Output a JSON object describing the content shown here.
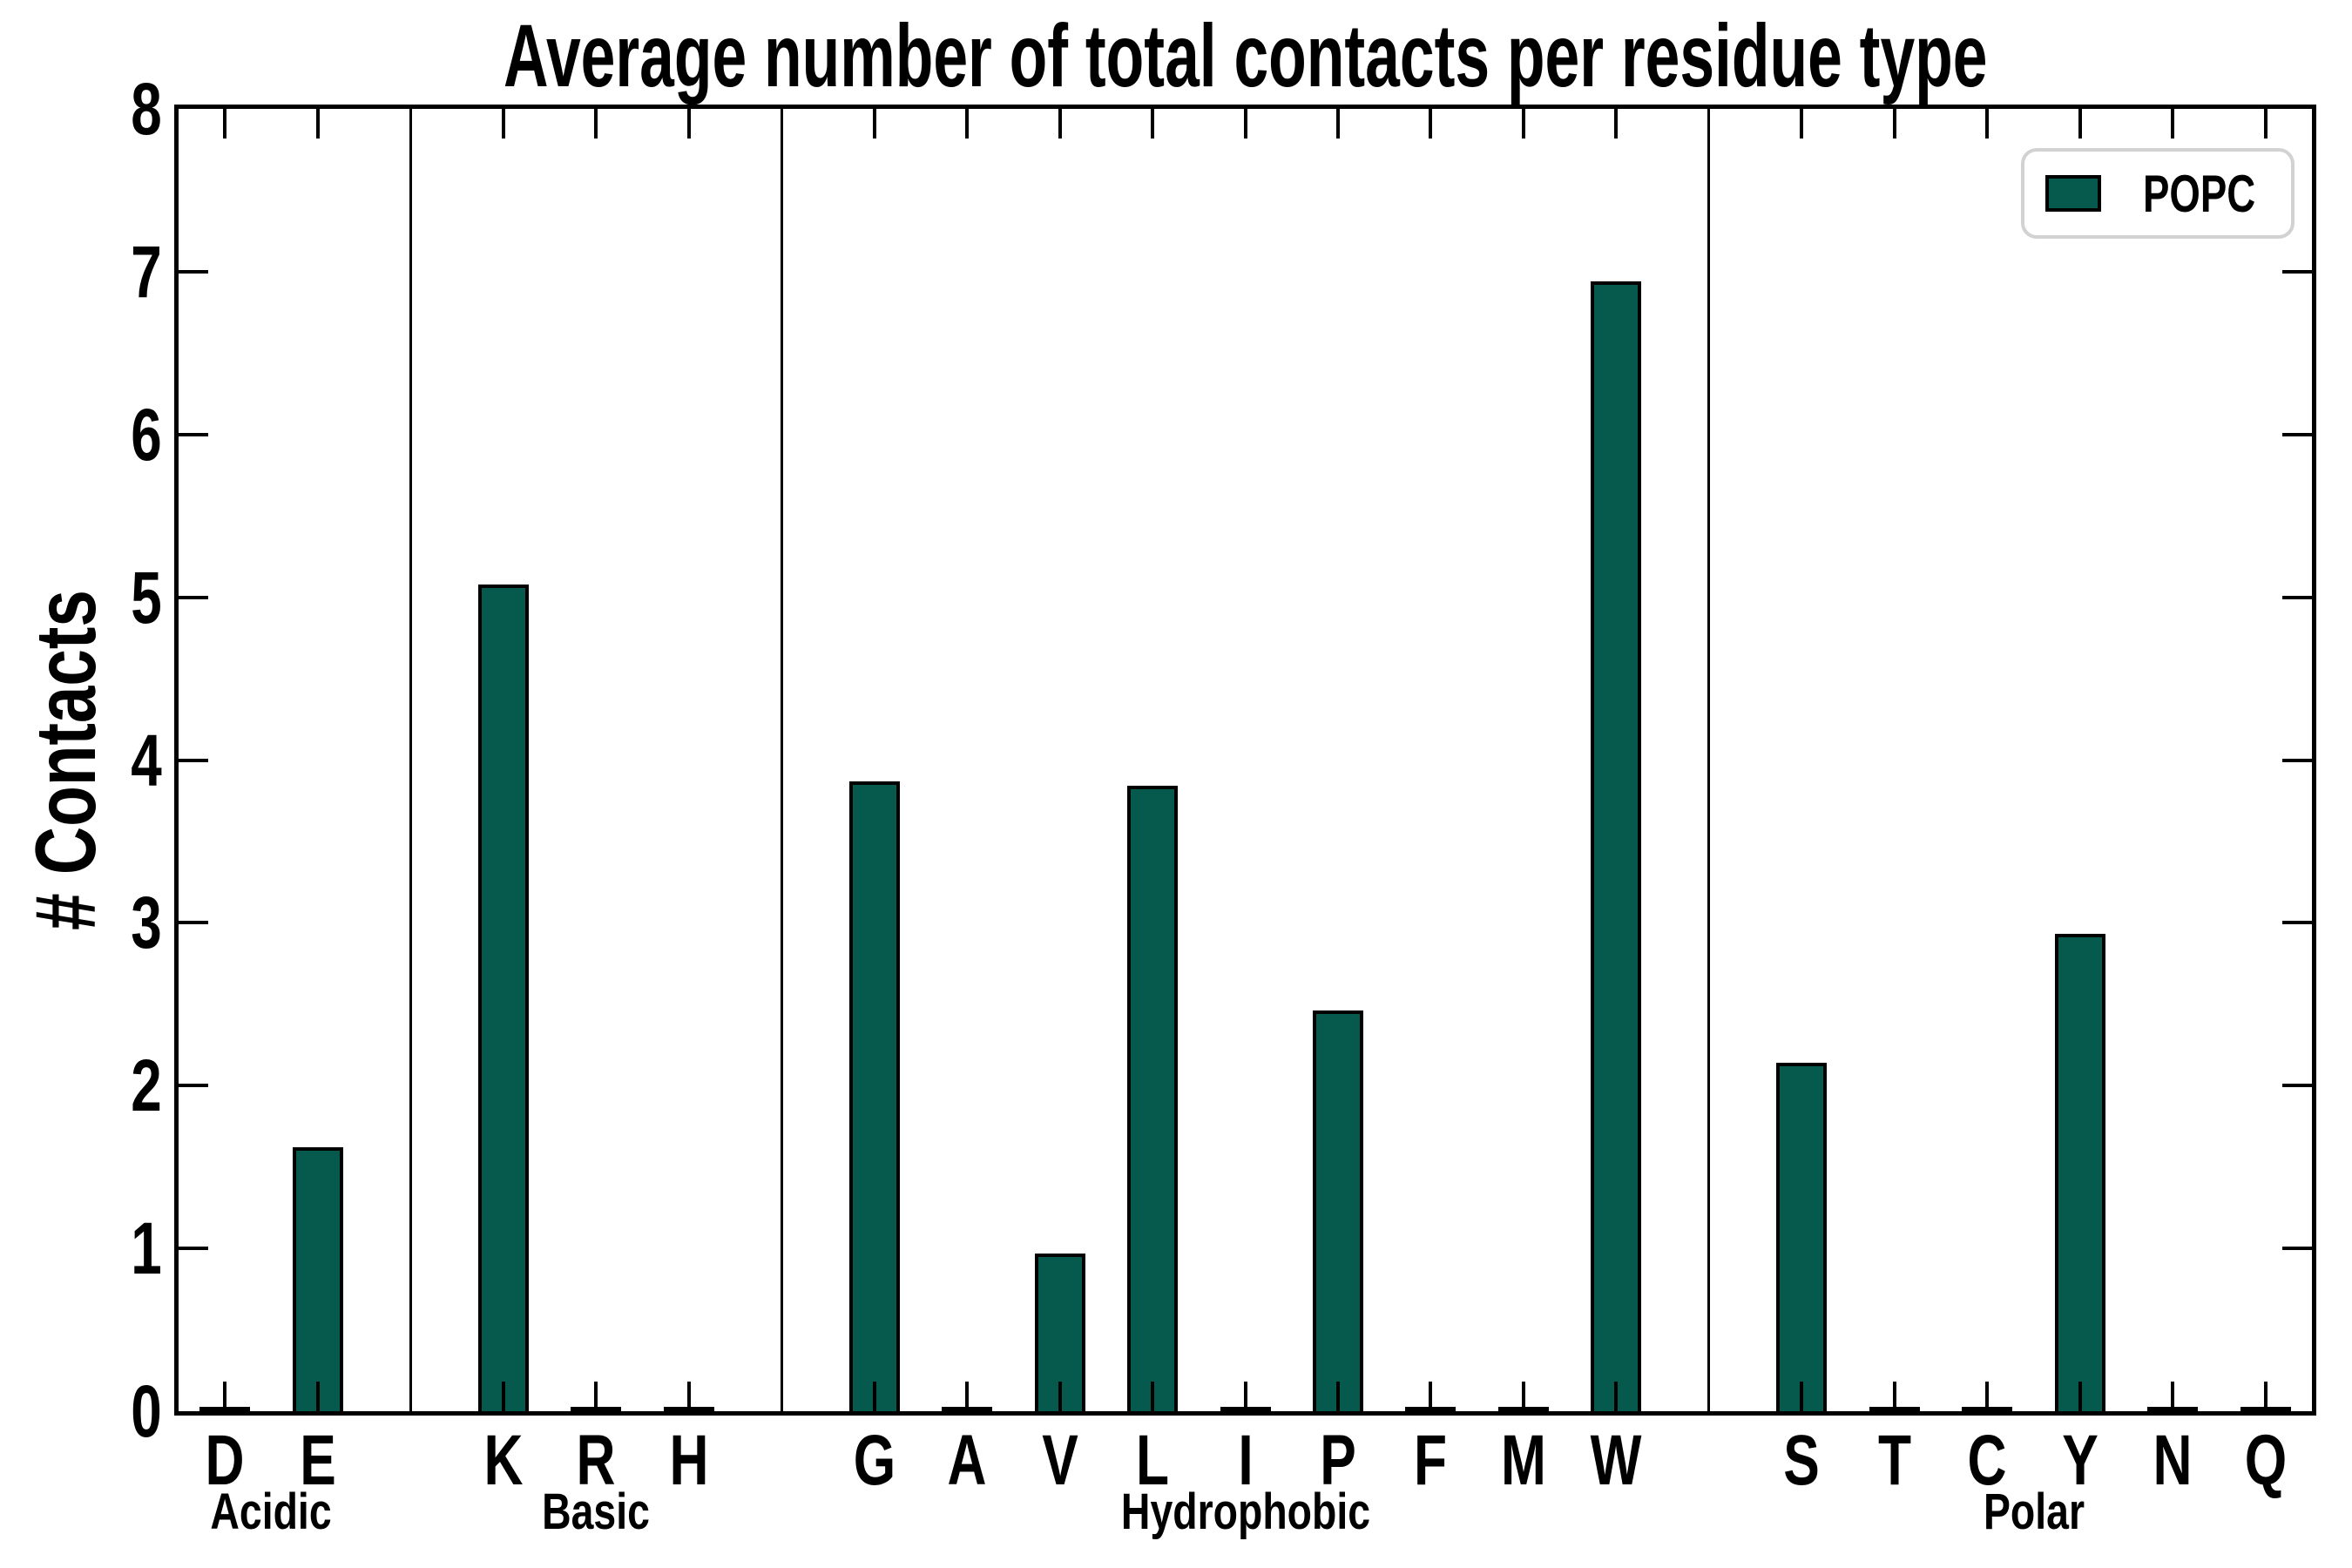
{
  "figure": {
    "title": "Average number of total contacts per residue type",
    "ylabel": "# Contacts",
    "legend_label": "POPC"
  },
  "chart_data": {
    "type": "bar",
    "title": "Average number of total contacts per residue type",
    "xlabel": "",
    "ylabel": "# Contacts",
    "ylim": [
      0,
      8
    ],
    "yticks": [
      0,
      1,
      2,
      3,
      4,
      5,
      6,
      7,
      8
    ],
    "grid": false,
    "legend": {
      "position": "upper right",
      "entries": [
        "POPC"
      ]
    },
    "bar_color": "#065A4D",
    "bar_edge_color": "#000000",
    "series_name": "POPC",
    "groups": [
      {
        "label": "Acidic",
        "categories": [
          "D",
          "E"
        ],
        "values": [
          0.02,
          1.62
        ]
      },
      {
        "label": "Basic",
        "categories": [
          "K",
          "R",
          "H"
        ],
        "values": [
          5.08,
          0.02,
          0.02
        ]
      },
      {
        "label": "Hydrophobic",
        "categories": [
          "G",
          "A",
          "V",
          "L",
          "I",
          "P",
          "F",
          "M",
          "W"
        ],
        "values": [
          3.87,
          0.02,
          0.97,
          3.84,
          0.02,
          2.46,
          0.02,
          0.02,
          6.94
        ]
      },
      {
        "label": "Polar",
        "categories": [
          "S",
          "T",
          "C",
          "Y",
          "N",
          "Q"
        ],
        "values": [
          2.14,
          0.02,
          0.02,
          2.93,
          0.02,
          0.02
        ]
      }
    ],
    "categories": [
      "D",
      "E",
      "K",
      "R",
      "H",
      "G",
      "A",
      "V",
      "L",
      "I",
      "P",
      "F",
      "M",
      "W",
      "S",
      "T",
      "C",
      "Y",
      "N",
      "Q"
    ],
    "values": [
      0.02,
      1.62,
      5.08,
      0.02,
      0.02,
      3.87,
      0.02,
      0.97,
      3.84,
      0.02,
      2.46,
      0.02,
      0.02,
      6.94,
      2.14,
      0.02,
      0.02,
      2.93,
      0.02,
      0.02
    ]
  }
}
